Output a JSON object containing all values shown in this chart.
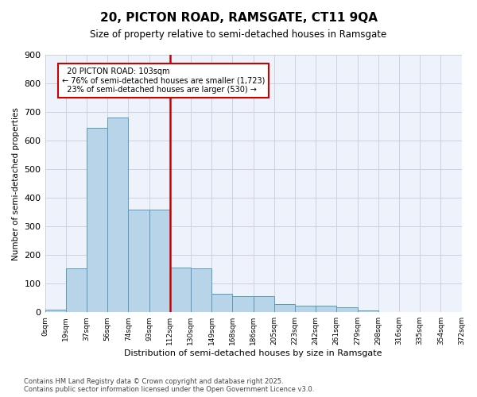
{
  "title": "20, PICTON ROAD, RAMSGATE, CT11 9QA",
  "subtitle": "Size of property relative to semi-detached houses in Ramsgate",
  "xlabel": "Distribution of semi-detached houses by size in Ramsgate",
  "ylabel": "Number of semi-detached properties",
  "property_label": "20 PICTON ROAD: 103sqm",
  "pct_smaller": 76,
  "count_smaller": 1723,
  "pct_larger": 23,
  "count_larger": 530,
  "bin_labels": [
    "0sqm",
    "19sqm",
    "37sqm",
    "56sqm",
    "74sqm",
    "93sqm",
    "112sqm",
    "130sqm",
    "149sqm",
    "168sqm",
    "186sqm",
    "205sqm",
    "223sqm",
    "242sqm",
    "261sqm",
    "279sqm",
    "298sqm",
    "316sqm",
    "335sqm",
    "354sqm",
    "372sqm"
  ],
  "bar_values": [
    10,
    152,
    645,
    680,
    360,
    360,
    157,
    152,
    65,
    55,
    55,
    27,
    22,
    22,
    17,
    5,
    0,
    0,
    0,
    0
  ],
  "bar_color": "#b8d4e8",
  "bar_edge_color": "#5a9abf",
  "vline_color": "#cc0000",
  "vline_x": 5.5,
  "annotation_box_color": "#cc0000",
  "ylim": [
    0,
    900
  ],
  "yticks": [
    0,
    100,
    200,
    300,
    400,
    500,
    600,
    700,
    800,
    900
  ],
  "grid_color": "#d0d0e0",
  "background_color": "#eef2fb",
  "footer": "Contains HM Land Registry data © Crown copyright and database right 2025.\nContains public sector information licensed under the Open Government Licence v3.0."
}
